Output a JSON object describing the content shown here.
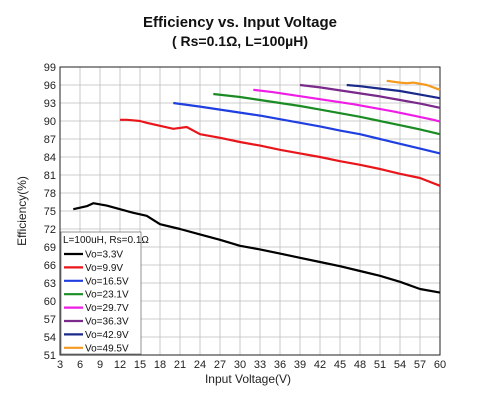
{
  "chart_data": {
    "type": "line",
    "title": "Efficiency vs. Input Voltage",
    "subtitle": "( Rs=0.1Ω, L=100µH)",
    "xlabel": "Input Voltage(V)",
    "ylabel": "Efficiency(%)",
    "xlim": [
      3,
      60
    ],
    "ylim": [
      51,
      99
    ],
    "xticks": [
      3,
      6,
      9,
      12,
      15,
      18,
      21,
      24,
      27,
      30,
      33,
      36,
      39,
      42,
      45,
      48,
      51,
      54,
      57,
      60
    ],
    "yticks": [
      51,
      54,
      57,
      60,
      63,
      66,
      69,
      72,
      75,
      78,
      81,
      84,
      87,
      90,
      93,
      96,
      99
    ],
    "grid": true,
    "legend": {
      "title": "L=100uH, Rs=0.1Ω",
      "position": "bottom-left"
    },
    "series": [
      {
        "name": "Vo=3.3V",
        "color": "#000000",
        "x": [
          5,
          7,
          8,
          10,
          12,
          14,
          16,
          18,
          21,
          24,
          27,
          30,
          33,
          36,
          39,
          42,
          45,
          48,
          51,
          54,
          57,
          60
        ],
        "y": [
          75.3,
          75.8,
          76.3,
          75.9,
          75.3,
          74.7,
          74.2,
          72.8,
          72.0,
          71.1,
          70.2,
          69.2,
          68.6,
          67.9,
          67.2,
          66.5,
          65.8,
          65.0,
          64.2,
          63.2,
          62.0,
          61.4
        ]
      },
      {
        "name": "Vo=9.9V",
        "color": "#e8161b",
        "x": [
          12,
          13,
          15,
          16,
          18,
          20,
          22,
          24,
          27,
          30,
          33,
          36,
          39,
          42,
          45,
          48,
          51,
          54,
          57,
          60
        ],
        "y": [
          90.2,
          90.2,
          90.0,
          89.7,
          89.2,
          88.7,
          89.0,
          87.8,
          87.2,
          86.5,
          85.9,
          85.2,
          84.6,
          84.0,
          83.3,
          82.7,
          82.0,
          81.2,
          80.5,
          79.2
        ]
      },
      {
        "name": "Vo=16.5V",
        "color": "#1f3fe0",
        "x": [
          20,
          24,
          27,
          30,
          33,
          36,
          39,
          42,
          45,
          48,
          51,
          54,
          57,
          60
        ],
        "y": [
          93.0,
          92.4,
          91.9,
          91.4,
          90.9,
          90.3,
          89.7,
          89.1,
          88.4,
          87.8,
          87.0,
          86.2,
          85.4,
          84.6
        ]
      },
      {
        "name": "Vo=23.1V",
        "color": "#1a8c23",
        "x": [
          26,
          30,
          33,
          36,
          39,
          42,
          45,
          48,
          51,
          54,
          57,
          60
        ],
        "y": [
          94.5,
          94.0,
          93.5,
          93.0,
          92.5,
          91.9,
          91.3,
          90.7,
          90.0,
          89.3,
          88.6,
          87.8
        ]
      },
      {
        "name": "Vo=29.7V",
        "color": "#ee1ee6",
        "x": [
          32,
          35,
          38,
          41,
          44,
          47,
          50,
          53,
          56,
          59,
          60
        ],
        "y": [
          95.2,
          94.8,
          94.3,
          93.8,
          93.3,
          92.8,
          92.2,
          91.6,
          90.9,
          90.2,
          89.9
        ]
      },
      {
        "name": "Vo=36.3V",
        "color": "#7a2a8a",
        "x": [
          39,
          42,
          45,
          48,
          51,
          54,
          57,
          60
        ],
        "y": [
          96.0,
          95.6,
          95.1,
          94.6,
          94.1,
          93.5,
          92.9,
          92.2
        ]
      },
      {
        "name": "Vo=42.9V",
        "color": "#1a2a8a",
        "x": [
          46,
          48,
          51,
          54,
          57,
          60
        ],
        "y": [
          96.0,
          95.8,
          95.4,
          95.0,
          94.4,
          93.8
        ]
      },
      {
        "name": "Vo=49.5V",
        "color": "#f59a1f",
        "x": [
          52,
          54,
          55,
          56,
          58,
          60
        ],
        "y": [
          96.7,
          96.4,
          96.3,
          96.4,
          96.0,
          95.2
        ]
      }
    ]
  }
}
